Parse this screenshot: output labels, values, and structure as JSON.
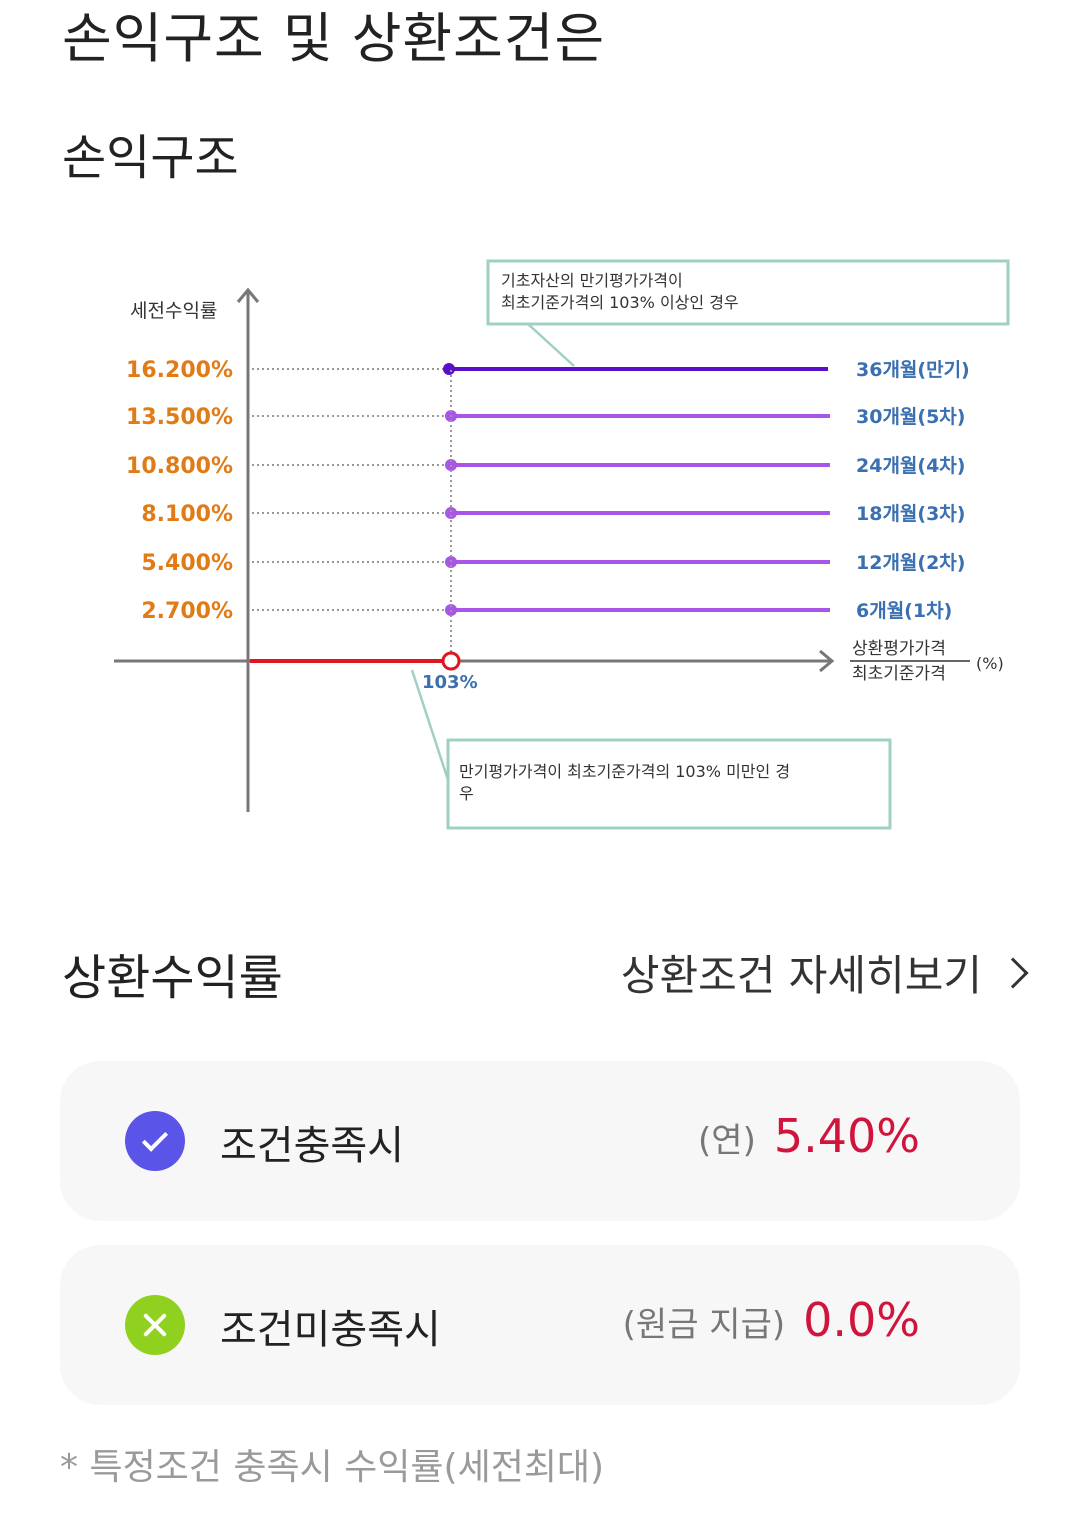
{
  "page": {
    "title": "손익구조 및 상환조건은",
    "section_title": "손익구조"
  },
  "chart_data": {
    "type": "line",
    "ylabel": "세전수익률",
    "xlabel_numerator": "상환평가가격",
    "xlabel_denominator": "최초기준가격",
    "xlabel_unit": "(%)",
    "threshold_label": "103%",
    "threshold": 103,
    "series": [
      {
        "name": "36개월(만기)",
        "value": "16.200%"
      },
      {
        "name": "30개월(5차)",
        "value": "13.500%"
      },
      {
        "name": "24개월(4차)",
        "value": "10.800%"
      },
      {
        "name": "18개월(3차)",
        "value": "8.100%"
      },
      {
        "name": "12개월(2차)",
        "value": "5.400%"
      },
      {
        "name": "6개월(1차)",
        "value": "2.700%"
      }
    ],
    "callout_top": [
      "기초자산의 만기평가가격이",
      "최초기준가격의 103% 이상인 경우"
    ],
    "callout_bottom": [
      "만기평가가격이 최초기준가격의 103% 미만인 경",
      "우"
    ],
    "colors": {
      "value_label": "#e07b16",
      "series_label": "#3a6fb0",
      "top_line": "#5a0fc8",
      "lines": "#a855e8",
      "loss_line": "#e0161e",
      "callout_border": "#9fd0c4",
      "axis": "#777777"
    }
  },
  "rates": {
    "title": "상환수익률",
    "detail_link": "상환조건 자세히보기",
    "items": [
      {
        "label": "조건충족시",
        "prefix": "(연)",
        "value": "5.40%"
      },
      {
        "label": "조건미충족시",
        "prefix": "(원금 지급)",
        "value": "0.0%"
      }
    ],
    "icons": [
      "check-icon",
      "x-icon"
    ]
  },
  "footnote": "* 특정조건 충족시 수익률(세전최대)"
}
